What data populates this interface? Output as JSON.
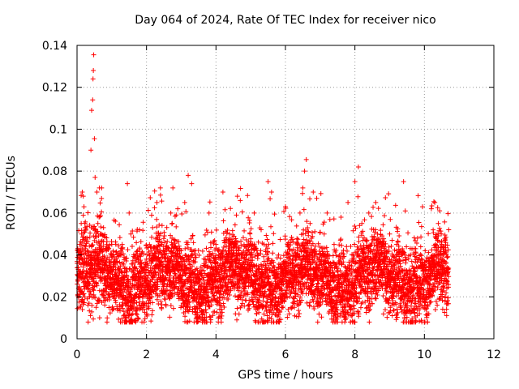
{
  "chart_data": {
    "type": "scatter",
    "title": "Day 064 of 2024, Rate Of TEC Index for receiver nico",
    "xlabel": "GPS time / hours",
    "ylabel": "ROTI / TECUs",
    "xlim": [
      0,
      12
    ],
    "ylim": [
      0,
      0.14
    ],
    "xticks": [
      0,
      2,
      4,
      6,
      8,
      10,
      12
    ],
    "xtick_labels": [
      "0",
      "2",
      "4",
      "6",
      "8",
      "10",
      "12"
    ],
    "yticks": [
      0,
      0.02,
      0.04,
      0.06,
      0.08,
      0.1,
      0.12,
      0.14
    ],
    "ytick_labels": [
      "0",
      "0.02",
      "0.04",
      "0.06",
      "0.08",
      "0.1",
      "0.12",
      "0.14"
    ],
    "grid": true,
    "marker": "+",
    "color": "#ff0000",
    "data_range_x": [
      0.0,
      10.7
    ],
    "series": [
      {
        "name": "ROTI",
        "points": [
          [
            0.02,
            0.021
          ],
          [
            0.05,
            0.032
          ],
          [
            0.08,
            0.045
          ],
          [
            0.12,
            0.055
          ],
          [
            0.15,
            0.07
          ],
          [
            0.18,
            0.068
          ],
          [
            0.2,
            0.063
          ],
          [
            0.25,
            0.03
          ],
          [
            0.3,
            0.042
          ],
          [
            0.35,
            0.02
          ],
          [
            0.4,
            0.09
          ],
          [
            0.42,
            0.109
          ],
          [
            0.45,
            0.114
          ],
          [
            0.46,
            0.124
          ],
          [
            0.47,
            0.128
          ],
          [
            0.48,
            0.1355
          ],
          [
            0.5,
            0.0955
          ],
          [
            0.52,
            0.077
          ],
          [
            0.55,
            0.015
          ],
          [
            0.6,
            0.055
          ],
          [
            0.65,
            0.01
          ],
          [
            0.7,
            0.05
          ],
          [
            0.8,
            0.035
          ],
          [
            0.9,
            0.025
          ],
          [
            1.0,
            0.045
          ],
          [
            1.1,
            0.03
          ],
          [
            1.2,
            0.02
          ],
          [
            1.3,
            0.045
          ],
          [
            1.45,
            0.074
          ],
          [
            1.5,
            0.06
          ],
          [
            1.55,
            0.05
          ],
          [
            1.7,
            0.012
          ],
          [
            1.8,
            0.052
          ],
          [
            2.0,
            0.038
          ],
          [
            2.1,
            0.021
          ],
          [
            2.3,
            0.065
          ],
          [
            2.4,
            0.072
          ],
          [
            2.5,
            0.04
          ],
          [
            2.7,
            0.06
          ],
          [
            2.9,
            0.062
          ],
          [
            3.1,
            0.065
          ],
          [
            3.2,
            0.078
          ],
          [
            3.3,
            0.074
          ],
          [
            3.4,
            0.033
          ],
          [
            3.6,
            0.01
          ],
          [
            3.8,
            0.06
          ],
          [
            4.0,
            0.045
          ],
          [
            4.2,
            0.07
          ],
          [
            4.4,
            0.03
          ],
          [
            4.6,
            0.009
          ],
          [
            4.7,
            0.066
          ],
          [
            4.9,
            0.045
          ],
          [
            5.1,
            0.06
          ],
          [
            5.3,
            0.052
          ],
          [
            5.5,
            0.075
          ],
          [
            5.6,
            0.07
          ],
          [
            5.8,
            0.04
          ],
          [
            6.0,
            0.063
          ],
          [
            6.2,
            0.025
          ],
          [
            6.4,
            0.012
          ],
          [
            6.5,
            0.072
          ],
          [
            6.55,
            0.08
          ],
          [
            6.6,
            0.0855
          ],
          [
            6.8,
            0.07
          ],
          [
            6.9,
            0.067
          ],
          [
            7.0,
            0.04
          ],
          [
            7.2,
            0.06
          ],
          [
            7.4,
            0.045
          ],
          [
            7.6,
            0.058
          ],
          [
            7.8,
            0.065
          ],
          [
            8.0,
            0.075
          ],
          [
            8.1,
            0.082
          ],
          [
            8.2,
            0.055
          ],
          [
            8.4,
            0.06
          ],
          [
            8.6,
            0.065
          ],
          [
            8.8,
            0.03
          ],
          [
            9.0,
            0.05
          ],
          [
            9.2,
            0.045
          ],
          [
            9.4,
            0.075
          ],
          [
            9.45,
            0.061
          ],
          [
            9.6,
            0.04
          ],
          [
            9.8,
            0.048
          ],
          [
            10.0,
            0.035
          ],
          [
            10.2,
            0.062
          ],
          [
            10.3,
            0.065
          ],
          [
            10.4,
            0.055
          ],
          [
            10.5,
            0.045
          ],
          [
            10.6,
            0.02
          ],
          [
            10.7,
            0.052
          ]
        ]
      }
    ]
  }
}
